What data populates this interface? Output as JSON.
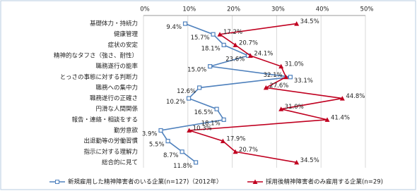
{
  "chart_data": {
    "type": "line",
    "orientation": "horizontal",
    "categories": [
      "基礎体力・持続力",
      "健康管理",
      "症状の安定",
      "精神的なタフさ（強さ、耐性）",
      "職務遂行の能率",
      "とっさの事態に対する判断力",
      "職務への集中力",
      "職務遂行の正確さ",
      "円滑な人間関係",
      "報告・連絡・相談をする",
      "勤労意欲",
      "出退勤等の労働習慣",
      "指示に対する理解力",
      "総合的に見て"
    ],
    "series": [
      {
        "name": "新規雇用した精神障害者のいる企業(n=127)（2012年）",
        "color": "#4f81bd",
        "marker": "square",
        "values": [
          9.4,
          15.7,
          18.1,
          23.6,
          15.0,
          33.1,
          12.6,
          10.2,
          16.5,
          18.1,
          3.9,
          5.5,
          8.7,
          11.8
        ],
        "value_labels": [
          "9.4%",
          "15.7%",
          "18.1%",
          "23.6%",
          "15.0%",
          "33.1%",
          "12.6%",
          "10.2%",
          "16.5%",
          "18.1%",
          "3.9%",
          "5.5%",
          "8.7%",
          "11.8%"
        ]
      },
      {
        "name": "採用後精神障害者のみ雇用する企業(n=29)",
        "color": "#c00020",
        "marker": "triangle",
        "values": [
          34.5,
          17.2,
          20.7,
          24.1,
          31.0,
          32.1,
          27.6,
          44.8,
          31.0,
          41.4,
          10.3,
          17.9,
          20.7,
          34.5
        ],
        "value_labels": [
          "34.5%",
          "17.2%",
          "20.7%",
          "24.1%",
          "31.0%",
          "32.1%",
          "27.6%",
          "44.8%",
          "31.0%",
          "41.4%",
          "10.3%",
          "17.9%",
          "20.7%",
          "34.5%"
        ]
      }
    ],
    "xlim": [
      0,
      50
    ],
    "xticks": [
      {
        "value": 0,
        "label": "0%"
      },
      {
        "value": 10,
        "label": "10%"
      },
      {
        "value": 20,
        "label": "20%"
      },
      {
        "value": 30,
        "label": "30%"
      },
      {
        "value": 40,
        "label": "40%"
      },
      {
        "value": 50,
        "label": "50%"
      }
    ],
    "grid": true,
    "legend": "bottom"
  }
}
